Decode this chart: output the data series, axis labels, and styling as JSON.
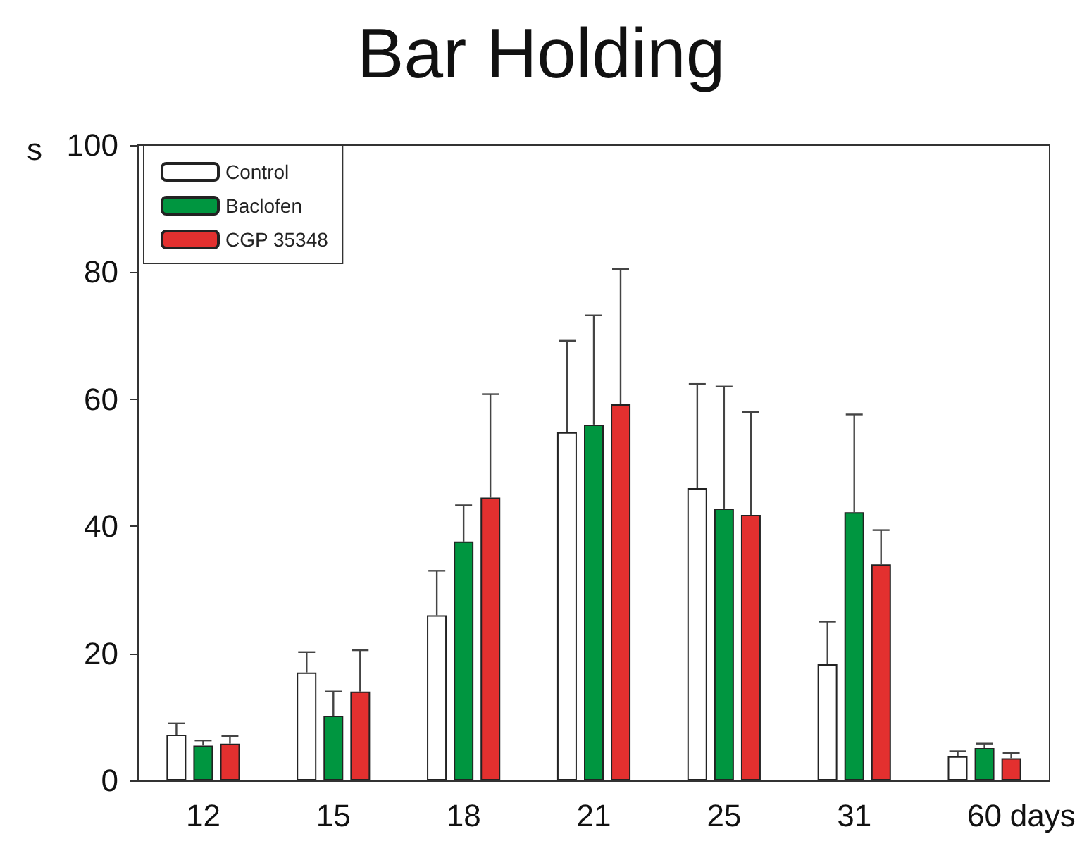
{
  "chart_data": {
    "type": "bar",
    "title": "Bar Holding",
    "xlabel": "days",
    "ylabel": "s",
    "categories": [
      "12",
      "15",
      "18",
      "21",
      "25",
      "31",
      "60"
    ],
    "series": [
      {
        "name": "Control",
        "color": "#ffffff",
        "values": [
          7.2,
          17,
          26,
          54.8,
          46,
          18.3,
          3.8
        ],
        "errors": [
          [
            7.2,
            9
          ],
          [
            17,
            20.2
          ],
          [
            26,
            33
          ],
          [
            54.8,
            69.2
          ],
          [
            46,
            62.4
          ],
          [
            18.3,
            25
          ],
          [
            3.8,
            4.6
          ]
        ]
      },
      {
        "name": "Baclofen",
        "color": "#009640",
        "values": [
          5.5,
          10.2,
          37.6,
          56,
          42.8,
          42.2,
          5.1
        ],
        "errors": [
          [
            5.5,
            6.3
          ],
          [
            10.2,
            14
          ],
          [
            37.6,
            43.3
          ],
          [
            56,
            73.2
          ],
          [
            42.8,
            62
          ],
          [
            42.2,
            57.6
          ],
          [
            5.1,
            5.8
          ]
        ]
      },
      {
        "name": "CGP 35348",
        "color": "#e3302f",
        "values": [
          5.8,
          14,
          44.5,
          59.2,
          41.8,
          34,
          3.5
        ],
        "errors": [
          [
            5.8,
            7
          ],
          [
            14,
            20.5
          ],
          [
            44.5,
            60.8
          ],
          [
            59.2,
            80.5
          ],
          [
            41.8,
            58
          ],
          [
            34,
            39.4
          ],
          [
            3.5,
            4.3
          ]
        ]
      }
    ],
    "ylim": [
      0,
      100
    ],
    "yticks": [
      0,
      20,
      40,
      60,
      80,
      100
    ],
    "grid": false,
    "legend": "top left"
  }
}
